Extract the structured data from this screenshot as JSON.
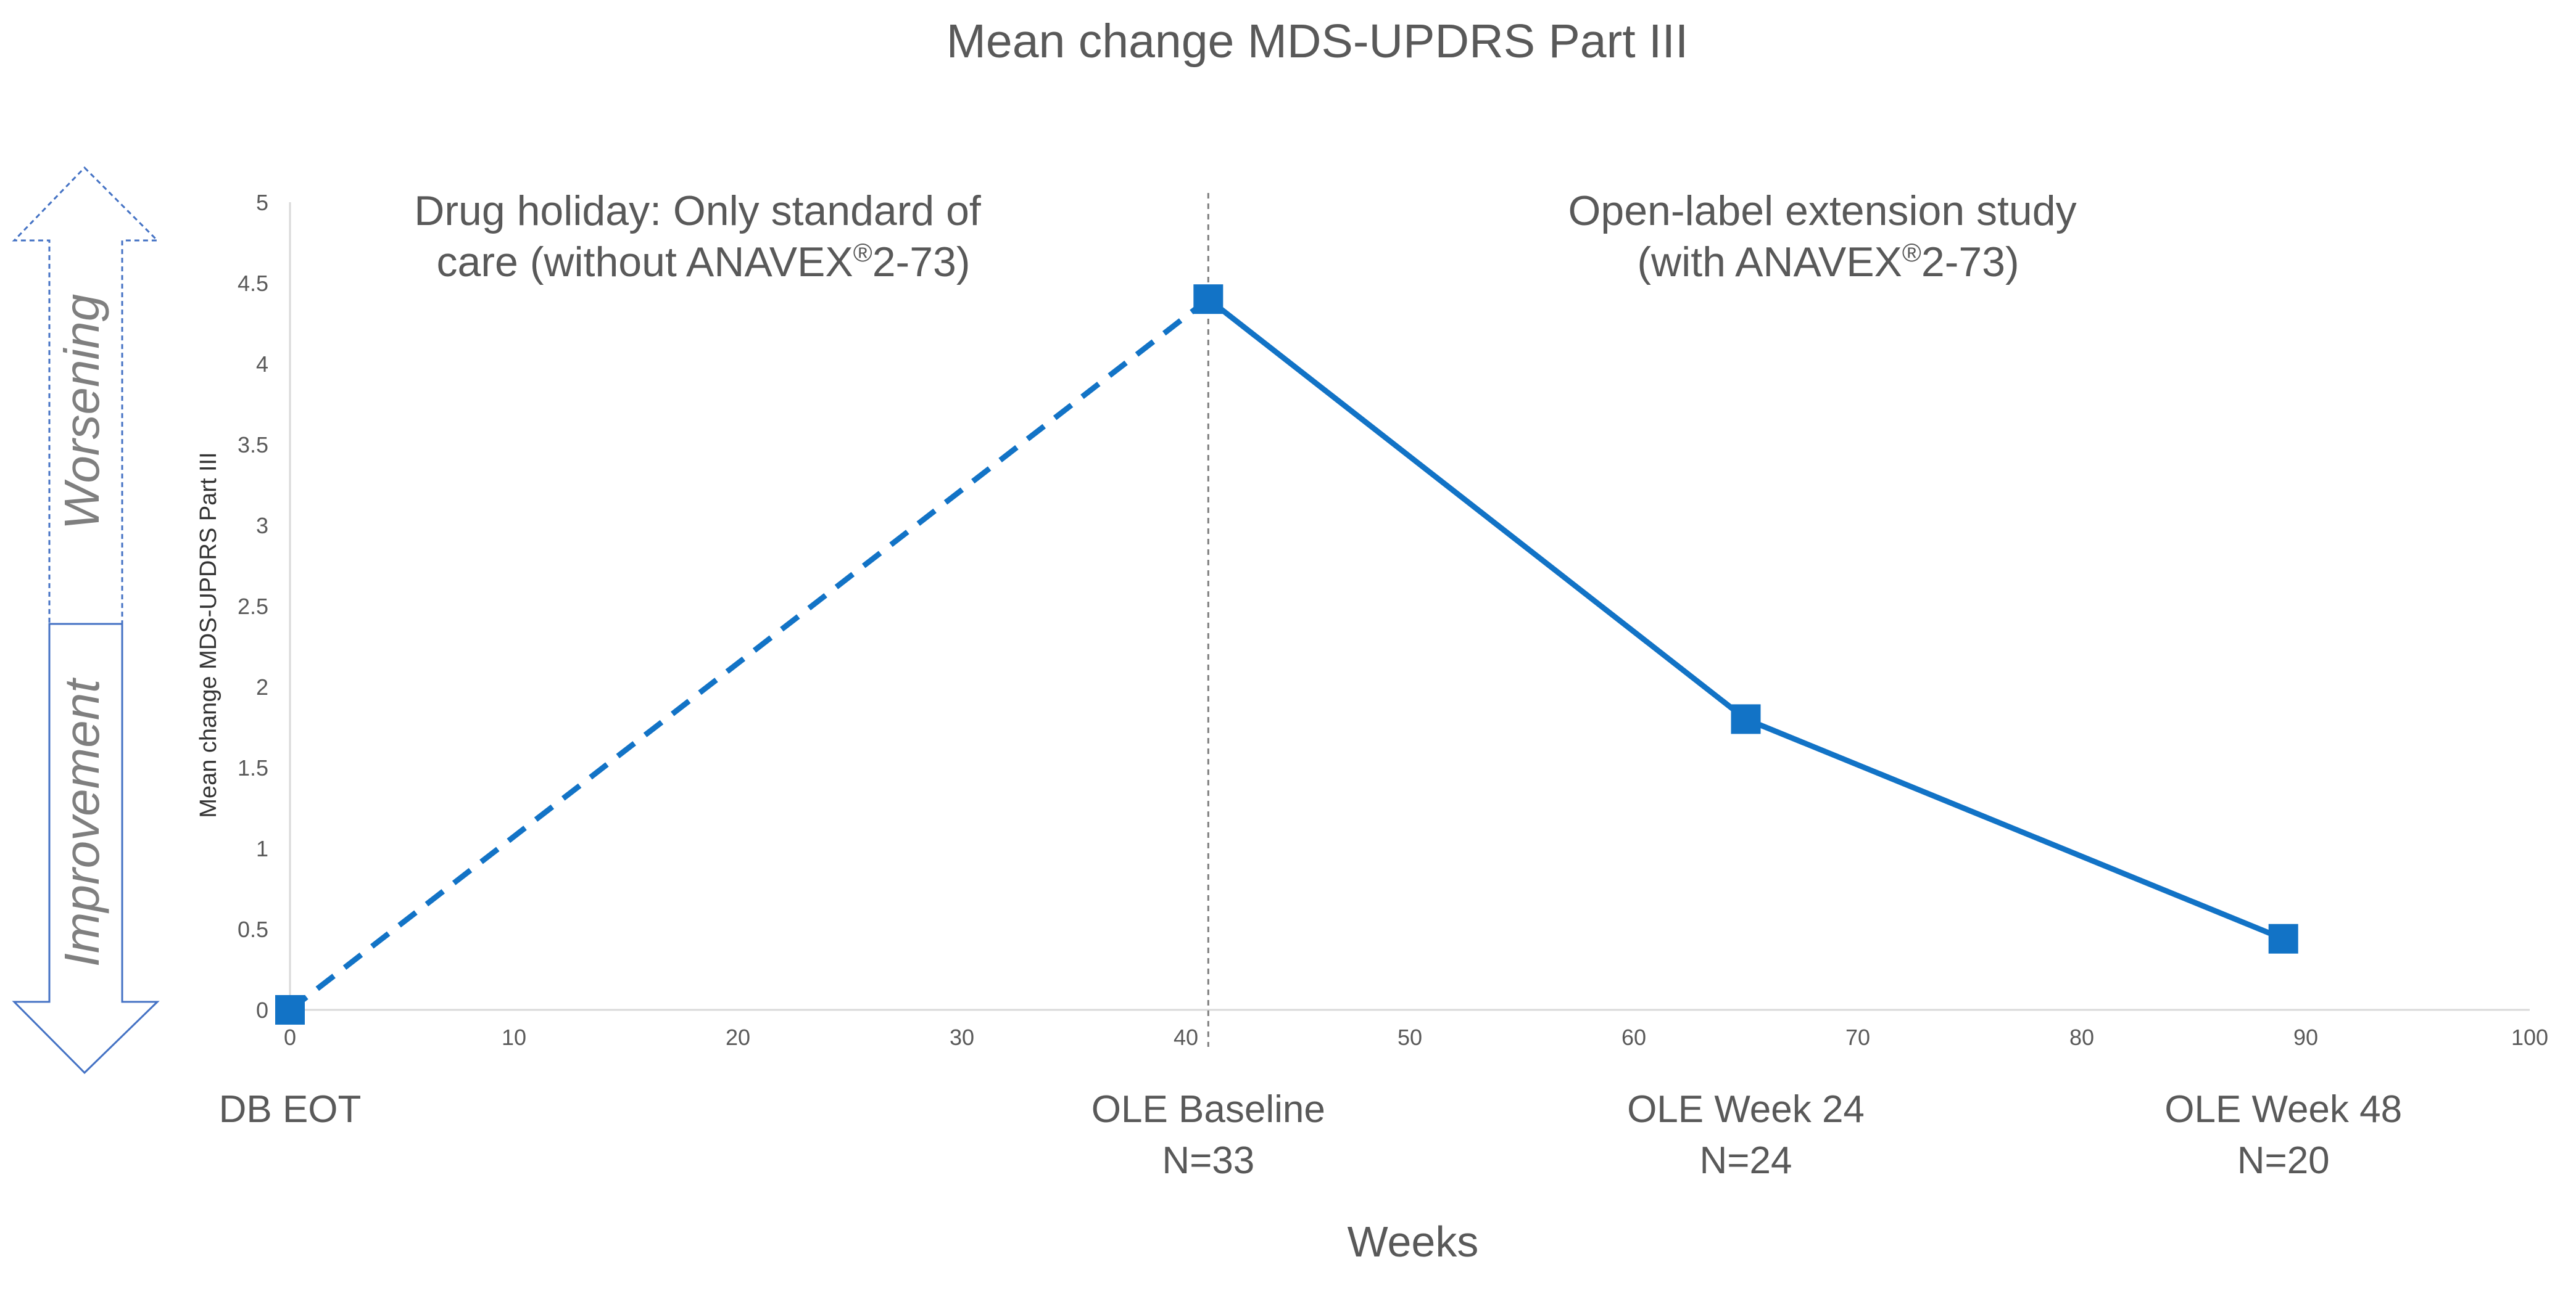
{
  "chart_data": {
    "type": "line",
    "title": "Mean change MDS-UPDRS Part III",
    "xlabel": "Weeks",
    "ylabel": "Mean change MDS-UPDRS Part III",
    "xlim": [
      0,
      100
    ],
    "ylim": [
      0,
      5
    ],
    "x_ticks": [
      "0",
      "10",
      "20",
      "30",
      "40",
      "50",
      "60",
      "70",
      "80",
      "90",
      "100"
    ],
    "y_ticks": [
      "0",
      "0.5",
      "1",
      "1.5",
      "2",
      "2.5",
      "3",
      "3.5",
      "4",
      "4.5",
      "5"
    ],
    "grid": false,
    "series": [
      {
        "points": [
          {
            "x": 0,
            "y": 0
          },
          {
            "x": 41,
            "y": 4.4
          },
          {
            "x": 65,
            "y": 1.8
          },
          {
            "x": 89,
            "y": 0.44
          }
        ],
        "dashed_segment": [
          0,
          1
        ],
        "color": "#1273C6"
      }
    ],
    "period_divider_x": 41,
    "annotations": {
      "left_period": [
        "Drug holiday: Only standard of",
        "care (without ANAVEX",
        "®",
        "2-73)"
      ],
      "right_period": [
        "Open-label extension study",
        "(with ANAVEX",
        "®",
        "2-73)"
      ]
    },
    "timepoint_labels": [
      {
        "x": 0,
        "lines": [
          "DB EOT"
        ]
      },
      {
        "x": 41,
        "lines": [
          "OLE Baseline",
          "N=33"
        ]
      },
      {
        "x": 65,
        "lines": [
          "OLE Week 24",
          "N=24"
        ]
      },
      {
        "x": 89,
        "lines": [
          "OLE Week 48",
          "N=20"
        ]
      }
    ],
    "direction_arrow": {
      "up_label": "Worsening",
      "down_label": "Improvement",
      "color": "#4472C4"
    }
  }
}
